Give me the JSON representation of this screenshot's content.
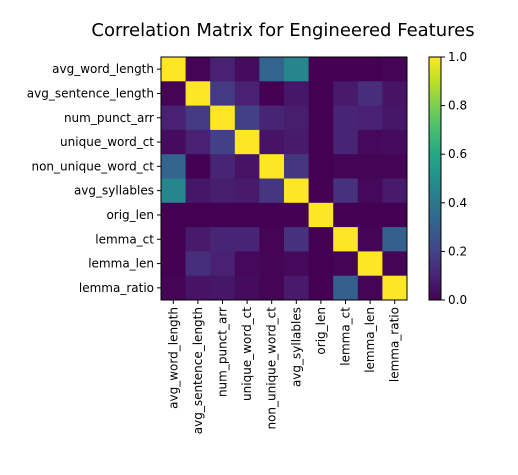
{
  "chart_data": {
    "type": "heatmap",
    "title": "Correlation Matrix for Engineered Features",
    "xlabel": "",
    "ylabel": "",
    "rows": [
      "avg_word_length",
      "avg_sentence_length",
      "num_punct_arr",
      "unique_word_ct",
      "non_unique_word_ct",
      "avg_syllables",
      "orig_len",
      "lemma_ct",
      "lemma_len",
      "lemma_ratio"
    ],
    "columns": [
      "avg_word_length",
      "avg_sentence_length",
      "num_punct_arr",
      "unique_word_ct",
      "non_unique_word_ct",
      "avg_syllables",
      "orig_len",
      "lemma_ct",
      "lemma_len",
      "lemma_ratio"
    ],
    "values": [
      [
        1.0,
        0.01,
        0.09,
        0.03,
        0.32,
        0.45,
        0.0,
        0.0,
        0.0,
        0.01
      ],
      [
        0.01,
        1.0,
        0.17,
        0.09,
        0.0,
        0.06,
        0.0,
        0.07,
        0.13,
        0.05
      ],
      [
        0.09,
        0.17,
        1.0,
        0.19,
        0.1,
        0.08,
        0.0,
        0.1,
        0.09,
        0.06
      ],
      [
        0.03,
        0.09,
        0.19,
        1.0,
        0.05,
        0.07,
        0.0,
        0.1,
        0.02,
        0.03
      ],
      [
        0.32,
        0.0,
        0.1,
        0.05,
        1.0,
        0.16,
        0.0,
        0.01,
        0.01,
        0.01
      ],
      [
        0.45,
        0.06,
        0.08,
        0.07,
        0.16,
        1.0,
        0.0,
        0.14,
        0.02,
        0.07
      ],
      [
        0.0,
        0.0,
        0.0,
        0.0,
        0.0,
        0.0,
        1.0,
        0.0,
        0.0,
        0.0
      ],
      [
        0.0,
        0.07,
        0.1,
        0.1,
        0.01,
        0.14,
        0.0,
        1.0,
        0.01,
        0.3
      ],
      [
        0.0,
        0.13,
        0.09,
        0.02,
        0.01,
        0.02,
        0.0,
        0.01,
        1.0,
        0.01
      ],
      [
        0.01,
        0.05,
        0.06,
        0.03,
        0.01,
        0.07,
        0.0,
        0.3,
        0.01,
        1.0
      ]
    ],
    "colormap": "viridis",
    "vmin": 0.0,
    "vmax": 1.0,
    "colorbar_ticks": [
      "0.0",
      "0.2",
      "0.4",
      "0.6",
      "0.8",
      "1.0"
    ],
    "grid": false
  }
}
